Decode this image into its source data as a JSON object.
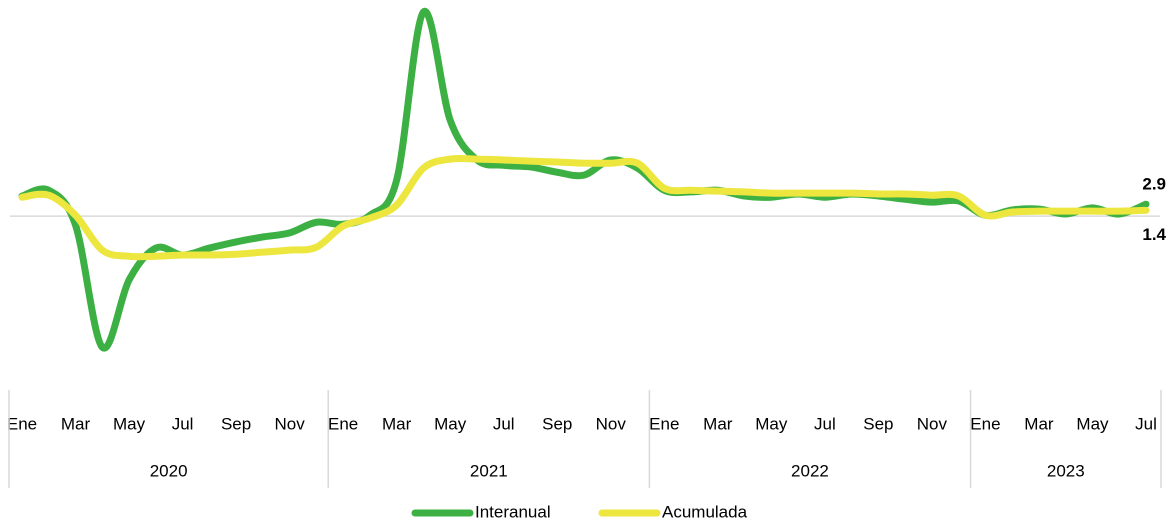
{
  "chart_data": {
    "type": "line",
    "categories": [
      "Ene",
      null,
      "Mar",
      null,
      "May",
      null,
      "Jul",
      null,
      "Sep",
      null,
      "Nov",
      null,
      "Ene",
      null,
      "Mar",
      null,
      "May",
      null,
      "Jul",
      null,
      "Sep",
      null,
      "Nov",
      null,
      "Ene",
      null,
      "Mar",
      null,
      "May",
      null,
      "Jul",
      null,
      "Sep",
      null,
      "Nov",
      null,
      "Ene",
      null,
      "Mar",
      null,
      "May",
      null,
      "Jul"
    ],
    "years": [
      "2020",
      "2021",
      "2022",
      "2023"
    ],
    "series": [
      {
        "name": "Interanual",
        "color": "#3cb043",
        "values": [
          4.9,
          6.3,
          -2.2,
          -32,
          -15.6,
          -7.8,
          -9.5,
          -7.8,
          -6.3,
          -5.1,
          -4.1,
          -1.5,
          -2,
          0.2,
          8.8,
          49.8,
          23.4,
          13.7,
          12.4,
          12,
          10.7,
          10,
          13.7,
          11.7,
          6.3,
          5.9,
          6.3,
          4.9,
          4.6,
          5.4,
          4.6,
          5.4,
          4.9,
          4.1,
          3.4,
          3.7,
          0.2,
          1.5,
          1.7,
          0.5,
          2,
          0.5,
          2.9
        ]
      },
      {
        "name": "Acumulada",
        "color": "#ece63e",
        "values": [
          4.6,
          5.1,
          0.2,
          -8.3,
          -9.8,
          -9.8,
          -9.5,
          -9.5,
          -9.3,
          -8.8,
          -8.3,
          -7.6,
          -2.4,
          -0.5,
          2.7,
          11.7,
          13.9,
          13.9,
          13.7,
          13.4,
          13.2,
          12.9,
          12.9,
          12.9,
          6.8,
          6.3,
          6.1,
          5.9,
          5.6,
          5.6,
          5.6,
          5.6,
          5.4,
          5.4,
          5.1,
          4.9,
          0.2,
          1,
          1.2,
          1.2,
          1.2,
          1.2,
          1.4
        ]
      }
    ],
    "ylim": [
      -40,
      52
    ]
  }
}
